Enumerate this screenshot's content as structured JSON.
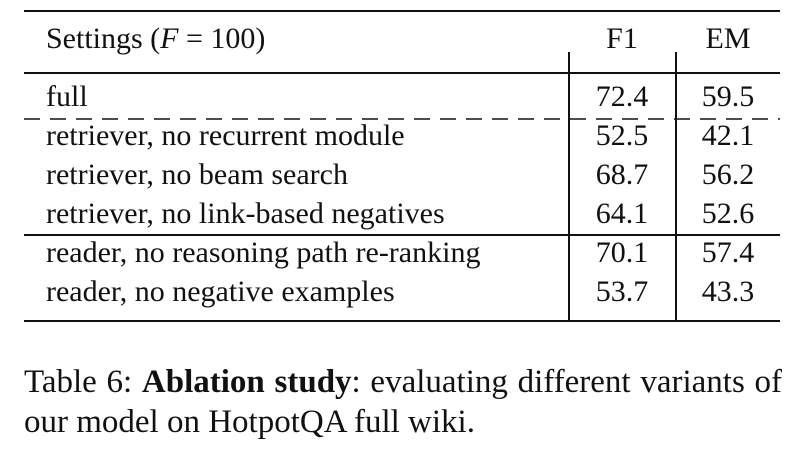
{
  "table": {
    "header": {
      "settings_prefix": "Settings (",
      "settings_var": "F",
      "settings_suffix": " = 100)",
      "col_f1": "F1",
      "col_em": "EM"
    },
    "rows": [
      {
        "setting": "full",
        "f1": "72.4",
        "em": "59.5"
      },
      {
        "setting": "retriever, no recurrent module",
        "f1": "52.5",
        "em": "42.1"
      },
      {
        "setting": "retriever, no beam search",
        "f1": "68.7",
        "em": "56.2"
      },
      {
        "setting": "retriever, no link-based negatives",
        "f1": "64.1",
        "em": "52.6"
      },
      {
        "setting": "reader, no reasoning path re-ranking",
        "f1": "70.1",
        "em": "57.4"
      },
      {
        "setting": "reader, no negative examples",
        "f1": "53.7",
        "em": "43.3"
      }
    ]
  },
  "caption": {
    "label": "Table 6:",
    "bold": "Ablation study",
    "rest": ": evaluating different variants of our model on HotpotQA full wiki."
  }
}
